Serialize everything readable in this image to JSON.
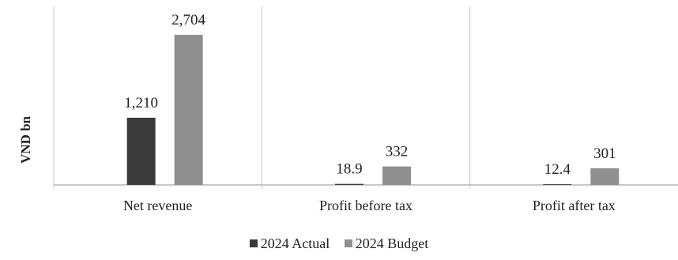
{
  "chart_data": {
    "type": "bar",
    "title": "",
    "xlabel": "",
    "ylabel": "VND bn",
    "ylim": [
      0,
      3000
    ],
    "grid": false,
    "legend_position": "bottom",
    "categories": [
      "Net revenue",
      "Profit before tax",
      "Profit after tax"
    ],
    "series": [
      {
        "name": "2024 Actual",
        "color": "#3a3a3a",
        "values": [
          1210,
          18.9,
          12.4
        ],
        "labels": [
          "1,210",
          "18.9",
          "12.4"
        ]
      },
      {
        "name": "2024 Budget",
        "color": "#8f8f8f",
        "values": [
          2704,
          332,
          301
        ],
        "labels": [
          "2,704",
          "332",
          "301"
        ]
      }
    ]
  }
}
